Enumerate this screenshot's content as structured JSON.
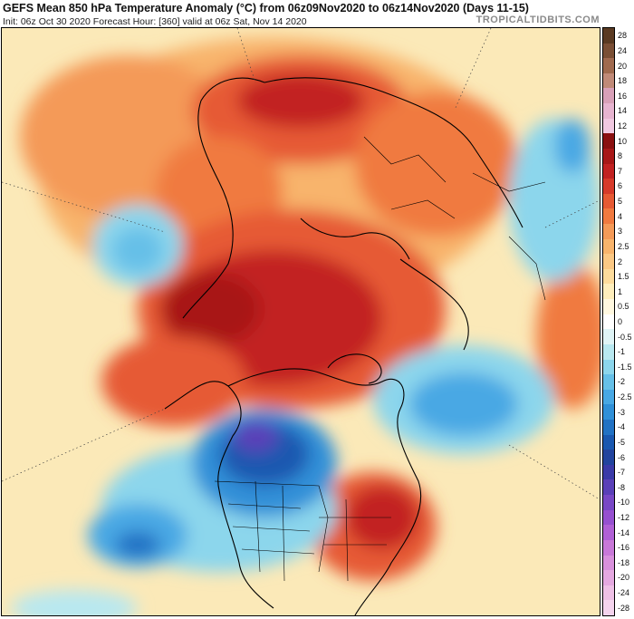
{
  "header": {
    "title": "GEFS Mean 850 hPa Temperature Anomaly (°C) from 06z09Nov2020 to 06z14Nov2020 (Days 11-15)",
    "subtitle": "Init: 06z Oct 30 2020   Forecast Hour: [360]   valid at 06z Sat, Nov 14 2020",
    "brand": "TROPICALTIDBITS.COM"
  },
  "colorbar": {
    "labels": [
      "28",
      "24",
      "20",
      "18",
      "16",
      "14",
      "12",
      "10",
      "8",
      "7",
      "6",
      "5",
      "4",
      "3",
      "2.5",
      "2",
      "1.5",
      "1",
      "0.5",
      "0",
      "-0.5",
      "-1",
      "-1.5",
      "-2",
      "-2.5",
      "-3",
      "-4",
      "-5",
      "-6",
      "-7",
      "-8",
      "-10",
      "-12",
      "-14",
      "-16",
      "-18",
      "-20",
      "-24",
      "-28"
    ],
    "colors": [
      "#5a3a22",
      "#7a4f35",
      "#a06a4f",
      "#c08a78",
      "#d8a0b8",
      "#e6b4d0",
      "#f0c8e0",
      "#8a1010",
      "#a81818",
      "#c22222",
      "#d63a2a",
      "#e65a34",
      "#f07a40",
      "#f49a58",
      "#f8b46c",
      "#fbc884",
      "#fddc9c",
      "#feeebc",
      "#fff8e0",
      "#ffffff",
      "#dff4f6",
      "#b8e8f0",
      "#8cd6ec",
      "#66c0e8",
      "#48a8e4",
      "#3090d8",
      "#2272c4",
      "#1a58b0",
      "#22449e",
      "#3a3aa8",
      "#5a40b8",
      "#7848c6",
      "#9650d0",
      "#b060d6",
      "#c878d8",
      "#d890dc",
      "#e4a8e0",
      "#eec0e6",
      "#f4d4ee"
    ]
  }
}
